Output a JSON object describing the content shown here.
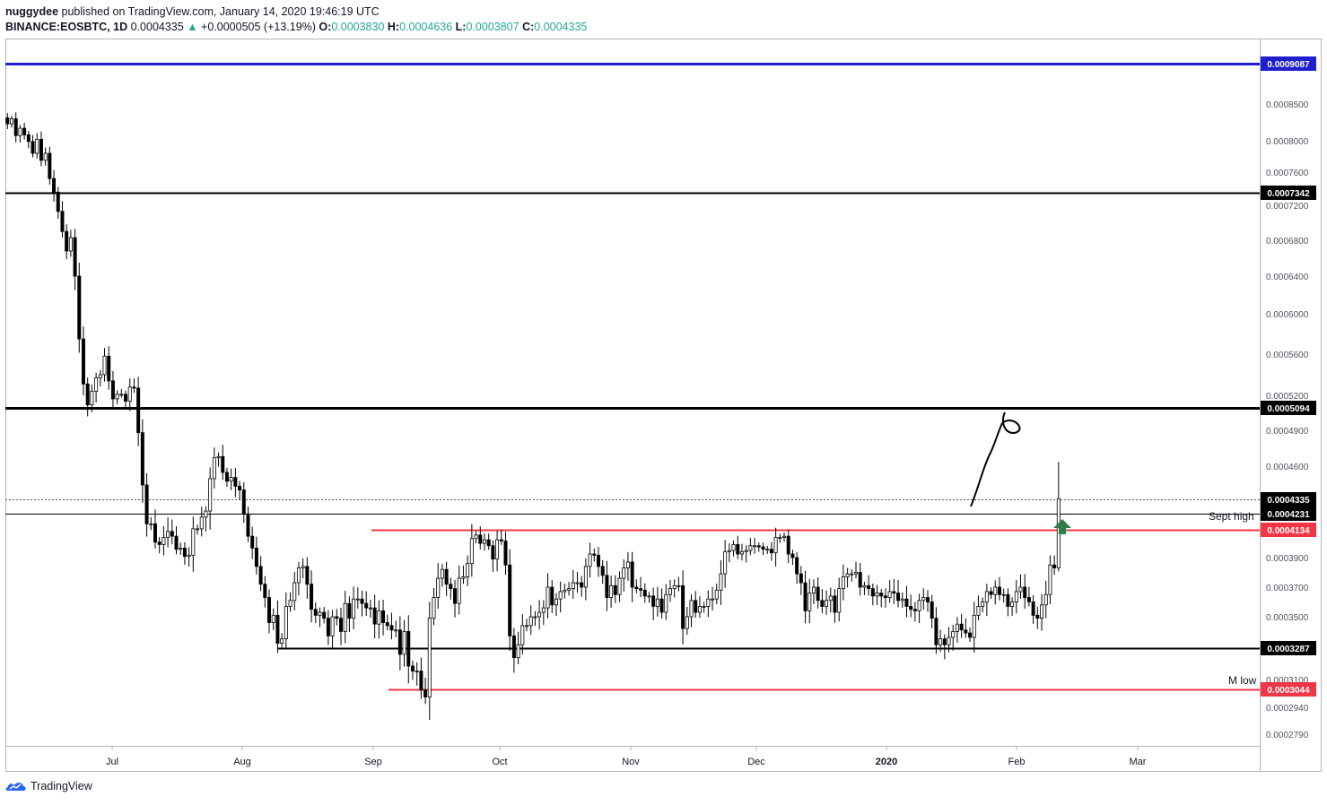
{
  "header": {
    "author": "nuggydee",
    "published_text": "published on TradingView.com, January 14, 2020 19:46:19 UTC",
    "symbol": "BINANCE:EOSBTC, 1D",
    "last": "0.0004335",
    "change": "+0.0000505 (+13.19%)",
    "open_label": "O:",
    "open": "0.0003830",
    "high_label": "H:",
    "high": "0.0004636",
    "low_label": "L:",
    "low": "0.0003807",
    "close_label": "C:",
    "close": "0.0004335"
  },
  "footer": {
    "brand": "TradingView"
  },
  "colors": {
    "up_teal": "#26a69a",
    "blue_line": "#1f1fd0",
    "red_line": "#f23645",
    "arrow_green": "#2e7d4a",
    "candle": "#000000"
  },
  "chart_data": {
    "type": "candlestick",
    "symbol": "BINANCE:EOSBTC",
    "interval": "1D",
    "ylim": [
      0.00027,
      0.00097
    ],
    "y_ticks": [
      "0.0008500",
      "0.0008000",
      "0.0007600",
      "0.0007200",
      "0.0006800",
      "0.0006400",
      "0.0006000",
      "0.0005600",
      "0.0005200",
      "0.0004900",
      "0.0004600",
      "0.0003900",
      "0.0003700",
      "0.0003500",
      "0.0003100",
      "0.0002940",
      "0.0002790"
    ],
    "x_ticks": [
      "Jul",
      "Aug",
      "Sep",
      "Oct",
      "Nov",
      "Dec",
      "2020",
      "Feb",
      "Mar"
    ],
    "series": [
      {
        "values": [
          0.000823,
          0.00083,
          0.000807,
          0.000817,
          0.000808,
          0.000799,
          0.000784,
          0.000802,
          0.000775,
          0.000784,
          0.000752,
          0.000735,
          0.000713,
          0.00069,
          0.000668,
          0.000683,
          0.00064,
          0.000575,
          0.000531,
          0.000512,
          0.000524,
          0.000537,
          0.00054,
          0.000558,
          0.000534,
          0.000517,
          0.000521,
          0.000521,
          0.000515,
          0.000528,
          0.000527,
          0.000488,
          0.000445,
          0.000417,
          0.000417,
          0.000403,
          0.000401,
          0.000407,
          0.000412,
          0.000408,
          0.000397,
          0.000398,
          0.000391,
          0.000392,
          0.000414,
          0.000414,
          0.000421,
          0.000425,
          0.00045,
          0.000467,
          0.000468,
          0.000455,
          0.000448,
          0.000451,
          0.000444,
          0.000441,
          0.000423,
          0.000408,
          0.000398,
          0.000384,
          0.000372,
          0.000363,
          0.000346,
          0.000351,
          0.000332,
          0.000335,
          0.000357,
          0.000361,
          0.000373,
          0.000383,
          0.000384,
          0.000372,
          0.000355,
          0.000351,
          0.000353,
          0.000349,
          0.000337,
          0.00035,
          0.000349,
          0.00034,
          0.000359,
          0.000349,
          0.000362,
          0.000362,
          0.000359,
          0.000356,
          0.000356,
          0.000345,
          0.000354,
          0.000346,
          0.000344,
          0.000341,
          0.000341,
          0.000325,
          0.00034,
          0.000318,
          0.000315,
          0.000315,
          0.000304,
          0.0003,
          0.000349,
          0.000363,
          0.000376,
          0.000382,
          0.000372,
          0.000369,
          0.000359,
          0.000376,
          0.000377,
          0.000386,
          0.000406,
          0.000409,
          0.000402,
          0.000405,
          0.0004,
          0.000389,
          0.000405,
          0.000404,
          0.000385,
          0.000337,
          0.000323,
          0.000331,
          0.000344,
          0.000344,
          0.00035,
          0.00035,
          0.000353,
          0.000356,
          0.00037,
          0.000358,
          0.000362,
          0.000367,
          0.000368,
          0.000369,
          0.000373,
          0.000373,
          0.00037,
          0.000384,
          0.000393,
          0.000392,
          0.000384,
          0.000378,
          0.000363,
          0.000371,
          0.000365,
          0.000376,
          0.000383,
          0.000387,
          0.00037,
          0.000369,
          0.000368,
          0.000364,
          0.000364,
          0.000357,
          0.000362,
          0.000353,
          0.000365,
          0.000369,
          0.000371,
          0.000371,
          0.000342,
          0.00035,
          0.000361,
          0.000353,
          0.000357,
          0.000357,
          0.000362,
          0.000362,
          0.000368,
          0.000379,
          0.000395,
          0.000396,
          0.000401,
          0.000393,
          0.000395,
          0.000396,
          0.0004,
          0.0004,
          0.000399,
          0.000397,
          0.000397,
          0.000394,
          0.000407,
          0.000407,
          0.000408,
          0.000393,
          0.00039,
          0.000379,
          0.000373,
          0.000354,
          0.000366,
          0.00037,
          0.000361,
          0.000357,
          0.000361,
          0.000364,
          0.000353,
          0.000369,
          0.000377,
          0.000379,
          0.000379,
          0.00038,
          0.00037,
          0.000371,
          0.000369,
          0.000364,
          0.000366,
          0.000364,
          0.000363,
          0.000367,
          0.000366,
          0.000361,
          0.000362,
          0.000357,
          0.000355,
          0.000354,
          0.000361,
          0.000363,
          0.00036,
          0.000349,
          0.000331,
          0.000335,
          0.000331,
          0.000336,
          0.00034,
          0.000345,
          0.000341,
          0.000339,
          0.000336,
          0.000351,
          0.000357,
          0.00036,
          0.000367,
          0.000365,
          0.00037,
          0.000365,
          0.000365,
          0.000357,
          0.00036,
          0.000367,
          0.00037,
          0.000363,
          0.00036,
          0.000351,
          0.000349,
          0.000358,
          0.000365,
          0.000385,
          0.000383,
          0.000434
        ]
      }
    ],
    "horizontal_levels": [
      {
        "price": "0.0009087",
        "color": "blue"
      },
      {
        "price": "0.0007342",
        "color": "black"
      },
      {
        "price": "0.0005094",
        "color": "black"
      },
      {
        "price": "0.0004335",
        "style": "dotted",
        "note": "last price"
      },
      {
        "price": "0.0004231",
        "label": "Sept high"
      },
      {
        "price": "0.0004134",
        "color": "red"
      },
      {
        "price": "0.0003287",
        "color": "black"
      },
      {
        "price": "0.0003044",
        "color": "red",
        "label": "M low"
      }
    ],
    "annotations": [
      "Sept high",
      "M low"
    ],
    "price_labels": [
      "0.0009087",
      "0.0007342",
      "0.0005094",
      "0.0004335",
      "0.0004231",
      "0.0004134",
      "0.0003287",
      "0.0003044"
    ]
  }
}
